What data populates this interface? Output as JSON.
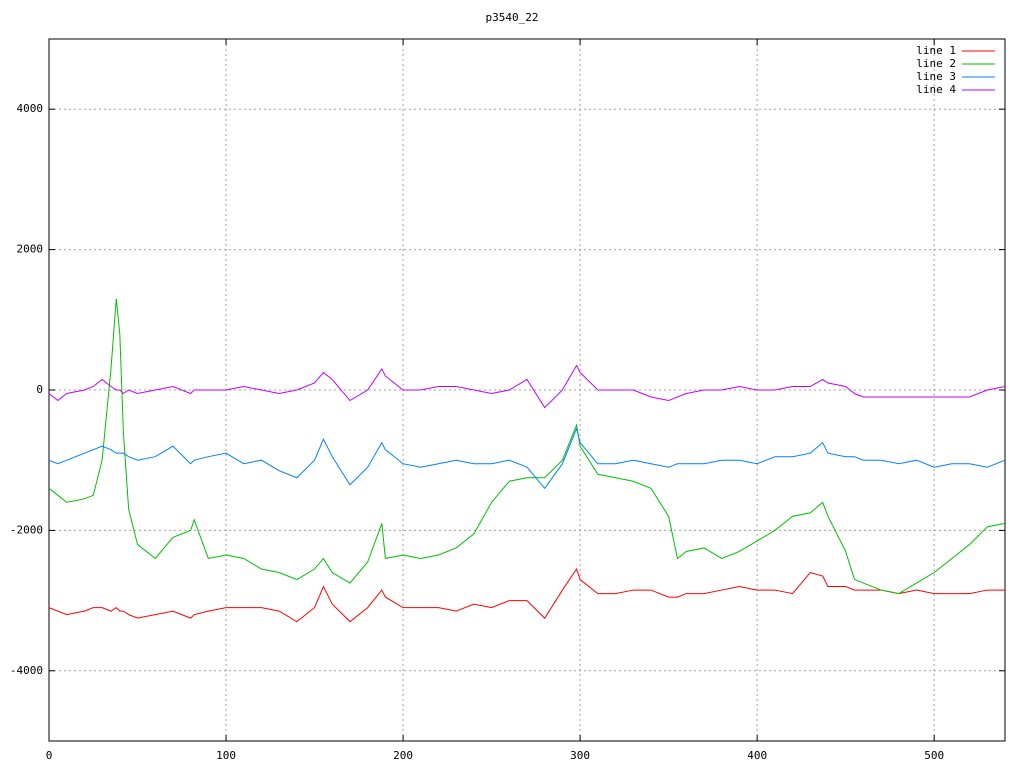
{
  "chart_data": {
    "type": "line",
    "title": "p3540_22",
    "x": [
      0,
      5,
      10,
      20,
      25,
      30,
      35,
      38,
      40,
      42,
      45,
      50,
      60,
      70,
      80,
      82,
      90,
      100,
      110,
      120,
      130,
      140,
      150,
      155,
      160,
      170,
      180,
      188,
      190,
      200,
      210,
      220,
      230,
      240,
      250,
      260,
      270,
      280,
      290,
      298,
      300,
      310,
      320,
      330,
      340,
      350,
      355,
      360,
      370,
      380,
      390,
      400,
      410,
      420,
      430,
      437,
      440,
      450,
      455,
      460,
      470,
      480,
      490,
      500,
      510,
      520,
      530,
      540
    ],
    "series": [
      {
        "name": "line 1",
        "color": "#ff0000",
        "values": [
          -3100,
          -3150,
          -3200,
          -3150,
          -3100,
          -3100,
          -3150,
          -3100,
          -3150,
          -3150,
          -3200,
          -3250,
          -3200,
          -3150,
          -3250,
          -3200,
          -3150,
          -3100,
          -3100,
          -3100,
          -3150,
          -3300,
          -3100,
          -2800,
          -3050,
          -3300,
          -3100,
          -2850,
          -2950,
          -3100,
          -3100,
          -3100,
          -3150,
          -3050,
          -3100,
          -3000,
          -3000,
          -3250,
          -2850,
          -2550,
          -2700,
          -2900,
          -2900,
          -2850,
          -2850,
          -2950,
          -2950,
          -2900,
          -2900,
          -2850,
          -2800,
          -2850,
          -2850,
          -2900,
          -2600,
          -2650,
          -2800,
          -2800,
          -2850,
          -2850,
          -2850,
          -2900,
          -2850,
          -2900,
          -2900,
          -2900,
          -2850,
          -2850
        ]
      },
      {
        "name": "line 2",
        "color": "#00c000",
        "values": [
          -1400,
          -1500,
          -1600,
          -1550,
          -1500,
          -1000,
          300,
          1300,
          800,
          -600,
          -1700,
          -2200,
          -2400,
          -2100,
          -2000,
          -1850,
          -2400,
          -2350,
          -2400,
          -2550,
          -2600,
          -2700,
          -2550,
          -2400,
          -2600,
          -2750,
          -2450,
          -1900,
          -2400,
          -2350,
          -2400,
          -2350,
          -2250,
          -2050,
          -1600,
          -1300,
          -1250,
          -1250,
          -1000,
          -500,
          -800,
          -1200,
          -1250,
          -1300,
          -1400,
          -1800,
          -2400,
          -2300,
          -2250,
          -2400,
          -2300,
          -2150,
          -2000,
          -1800,
          -1750,
          -1600,
          -1800,
          -2300,
          -2700,
          -2750,
          -2850,
          -2900,
          -2750,
          -2600,
          -2400,
          -2200,
          -1950,
          -1900
        ]
      },
      {
        "name": "line 3",
        "color": "#0080ff",
        "values": [
          -1000,
          -1050,
          -1000,
          -900,
          -850,
          -800,
          -850,
          -900,
          -900,
          -900,
          -950,
          -1000,
          -950,
          -800,
          -1050,
          -1000,
          -950,
          -900,
          -1050,
          -1000,
          -1150,
          -1250,
          -1000,
          -700,
          -950,
          -1350,
          -1100,
          -750,
          -850,
          -1050,
          -1100,
          -1050,
          -1000,
          -1050,
          -1050,
          -1000,
          -1100,
          -1400,
          -1050,
          -550,
          -750,
          -1050,
          -1050,
          -1000,
          -1050,
          -1100,
          -1050,
          -1050,
          -1050,
          -1000,
          -1000,
          -1050,
          -950,
          -950,
          -900,
          -750,
          -900,
          -950,
          -950,
          -1000,
          -1000,
          -1050,
          -1000,
          -1100,
          -1050,
          -1050,
          -1100,
          -1000
        ]
      },
      {
        "name": "line 4",
        "color": "#c000ff",
        "values": [
          -50,
          -150,
          -50,
          0,
          50,
          150,
          50,
          0,
          0,
          -50,
          0,
          -50,
          0,
          50,
          -50,
          0,
          0,
          0,
          50,
          0,
          -50,
          0,
          100,
          250,
          150,
          -150,
          0,
          300,
          200,
          0,
          0,
          50,
          50,
          0,
          -50,
          0,
          150,
          -250,
          0,
          350,
          250,
          0,
          0,
          0,
          -100,
          -150,
          -100,
          -50,
          0,
          0,
          50,
          0,
          0,
          50,
          50,
          150,
          100,
          50,
          -50,
          -100,
          -100,
          -100,
          -100,
          -100,
          -100,
          -100,
          0,
          50
        ]
      }
    ],
    "xlim": [
      0,
      540
    ],
    "ylim": [
      -5000,
      5000
    ],
    "xticks": [
      0,
      100,
      200,
      300,
      400,
      500
    ],
    "yticks": [
      -4000,
      -2000,
      0,
      2000,
      4000
    ],
    "grid": true,
    "legend": "top-right"
  }
}
